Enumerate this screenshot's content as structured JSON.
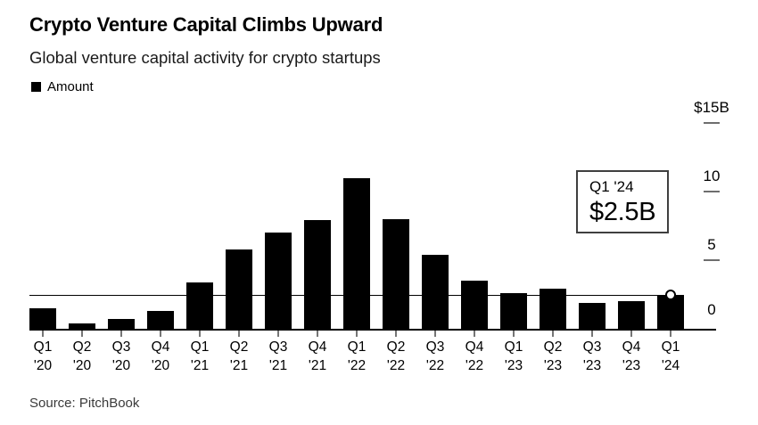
{
  "header": {
    "title": "Crypto Venture Capital Climbs Upward",
    "subtitle": "Global venture capital activity for crypto startups"
  },
  "legend": {
    "items": [
      {
        "label": "Amount",
        "color": "#000000"
      }
    ]
  },
  "callout": {
    "line1": "Q1 '24",
    "line2": "$2.5B"
  },
  "source": "Source: PitchBook",
  "chart_data": {
    "type": "bar",
    "title": "Crypto Venture Capital Climbs Upward",
    "subtitle": "Global venture capital activity for crypto startups",
    "series_name": "Amount",
    "unit": "billion USD",
    "categories": [
      "Q1 '20",
      "Q2 '20",
      "Q3 '20",
      "Q4 '20",
      "Q1 '21",
      "Q2 '21",
      "Q3 '21",
      "Q4 '21",
      "Q1 '22",
      "Q2 '22",
      "Q3 '22",
      "Q4 '22",
      "Q1 '23",
      "Q2 '23",
      "Q3 '23",
      "Q4 '23",
      "Q1 '24"
    ],
    "values": [
      1.5,
      0.4,
      0.7,
      1.3,
      3.4,
      5.8,
      7.0,
      7.9,
      11.0,
      8.0,
      5.4,
      3.5,
      2.6,
      2.9,
      1.9,
      2.0,
      2.5
    ],
    "bar_color": "#000000",
    "ylim": [
      0,
      15
    ],
    "y_axis_side": "right",
    "y_ticks": [
      {
        "label": "$15B",
        "value": 15,
        "dash": true
      },
      {
        "label": "10",
        "value": 10,
        "dash": true
      },
      {
        "label": "5",
        "value": 5,
        "dash": true
      },
      {
        "label": "0",
        "value": 0,
        "dash": false
      }
    ],
    "grid": false,
    "legend_position": "top-left",
    "reference_line_value": 2.5,
    "highlight": {
      "category": "Q1 '24",
      "value": 2.5,
      "label": "$2.5B",
      "marker": "white-circle"
    }
  }
}
